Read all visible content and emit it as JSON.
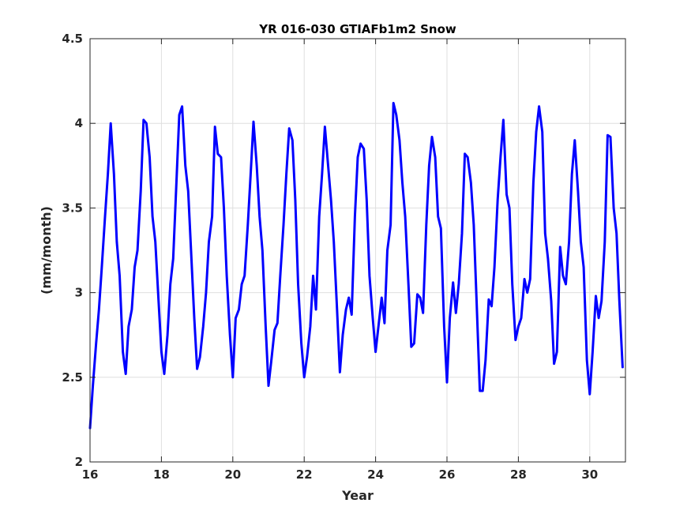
{
  "chart_data": {
    "type": "line",
    "title": "YR 016-030 GTIAFb1m2 Snow",
    "xlabel": "Year",
    "ylabel": "(mm/month)",
    "xlim": [
      16,
      31
    ],
    "ylim": [
      2,
      4.5
    ],
    "xticks": [
      16,
      18,
      20,
      22,
      24,
      26,
      28,
      30
    ],
    "yticks": [
      2,
      2.5,
      3,
      3.5,
      4,
      4.5
    ],
    "xtick_labels": [
      "16",
      "18",
      "20",
      "22",
      "24",
      "26",
      "28",
      "30"
    ],
    "ytick_labels": [
      "2",
      "2.5",
      "3",
      "3.5",
      "4",
      "4.5"
    ],
    "grid": true,
    "series": [
      {
        "color": "#0000ff",
        "x": [
          16.0,
          16.08,
          16.17,
          16.25,
          16.33,
          16.42,
          16.5,
          16.58,
          16.67,
          16.75,
          16.83,
          16.92,
          17.0,
          17.08,
          17.17,
          17.25,
          17.33,
          17.42,
          17.5,
          17.58,
          17.67,
          17.75,
          17.83,
          17.92,
          18.0,
          18.08,
          18.17,
          18.25,
          18.33,
          18.42,
          18.5,
          18.58,
          18.67,
          18.75,
          18.83,
          18.92,
          19.0,
          19.08,
          19.17,
          19.25,
          19.33,
          19.42,
          19.5,
          19.58,
          19.67,
          19.75,
          19.83,
          19.92,
          20.0,
          20.08,
          20.17,
          20.25,
          20.33,
          20.42,
          20.5,
          20.58,
          20.67,
          20.75,
          20.83,
          20.92,
          21.0,
          21.08,
          21.17,
          21.25,
          21.33,
          21.42,
          21.5,
          21.58,
          21.67,
          21.75,
          21.83,
          21.92,
          22.0,
          22.08,
          22.17,
          22.25,
          22.33,
          22.42,
          22.5,
          22.58,
          22.67,
          22.75,
          22.83,
          22.92,
          23.0,
          23.08,
          23.17,
          23.25,
          23.33,
          23.42,
          23.5,
          23.58,
          23.67,
          23.75,
          23.83,
          23.92,
          24.0,
          24.08,
          24.17,
          24.25,
          24.33,
          24.42,
          24.5,
          24.58,
          24.67,
          24.75,
          24.83,
          24.92,
          25.0,
          25.08,
          25.17,
          25.25,
          25.33,
          25.42,
          25.5,
          25.58,
          25.67,
          25.75,
          25.83,
          25.92,
          26.0,
          26.08,
          26.17,
          26.25,
          26.33,
          26.42,
          26.5,
          26.58,
          26.67,
          26.75,
          26.83,
          26.92,
          27.0,
          27.08,
          27.17,
          27.25,
          27.33,
          27.42,
          27.5,
          27.58,
          27.67,
          27.75,
          27.83,
          27.92,
          28.0,
          28.08,
          28.17,
          28.25,
          28.33,
          28.42,
          28.5,
          28.58,
          28.67,
          28.75,
          28.83,
          28.92,
          29.0,
          29.08,
          29.17,
          29.25,
          29.33,
          29.42,
          29.5,
          29.58,
          29.67,
          29.75,
          29.83,
          29.92,
          30.0,
          30.08,
          30.17,
          30.25,
          30.33,
          30.42,
          30.5,
          30.58,
          30.67,
          30.75,
          30.83,
          30.92
        ],
        "y": [
          2.2,
          2.45,
          2.7,
          2.9,
          3.15,
          3.45,
          3.7,
          4.0,
          3.7,
          3.3,
          3.1,
          2.65,
          2.52,
          2.8,
          2.9,
          3.15,
          3.25,
          3.6,
          4.02,
          4.0,
          3.8,
          3.45,
          3.3,
          2.95,
          2.65,
          2.52,
          2.75,
          3.05,
          3.2,
          3.65,
          4.05,
          4.1,
          3.75,
          3.6,
          3.25,
          2.85,
          2.55,
          2.62,
          2.8,
          3.0,
          3.3,
          3.45,
          3.98,
          3.82,
          3.8,
          3.5,
          3.1,
          2.75,
          2.5,
          2.85,
          2.9,
          3.05,
          3.1,
          3.4,
          3.7,
          4.01,
          3.75,
          3.45,
          3.25,
          2.8,
          2.45,
          2.6,
          2.78,
          2.82,
          3.1,
          3.4,
          3.7,
          3.97,
          3.9,
          3.55,
          3.05,
          2.7,
          2.5,
          2.62,
          2.8,
          3.1,
          2.9,
          3.45,
          3.7,
          3.98,
          3.75,
          3.55,
          3.3,
          2.9,
          2.53,
          2.75,
          2.9,
          2.97,
          2.87,
          3.45,
          3.8,
          3.88,
          3.85,
          3.55,
          3.1,
          2.85,
          2.65,
          2.8,
          2.97,
          2.82,
          3.25,
          3.4,
          4.12,
          4.05,
          3.9,
          3.65,
          3.45,
          3.05,
          2.68,
          2.7,
          2.99,
          2.97,
          2.88,
          3.4,
          3.75,
          3.92,
          3.8,
          3.45,
          3.38,
          2.8,
          2.47,
          2.85,
          3.06,
          2.88,
          3.05,
          3.35,
          3.82,
          3.8,
          3.65,
          3.4,
          2.95,
          2.42,
          2.42,
          2.6,
          2.96,
          2.92,
          3.15,
          3.55,
          3.8,
          4.02,
          3.58,
          3.5,
          3.05,
          2.72,
          2.8,
          2.85,
          3.08,
          3.0,
          3.08,
          3.65,
          3.95,
          4.1,
          3.95,
          3.35,
          3.2,
          2.95,
          2.58,
          2.65,
          3.27,
          3.1,
          3.05,
          3.3,
          3.7,
          3.9,
          3.6,
          3.3,
          3.15,
          2.6,
          2.4,
          2.65,
          2.98,
          2.85,
          2.95,
          3.3,
          3.93,
          3.92,
          3.5,
          3.35,
          2.95,
          2.56
        ]
      }
    ]
  }
}
